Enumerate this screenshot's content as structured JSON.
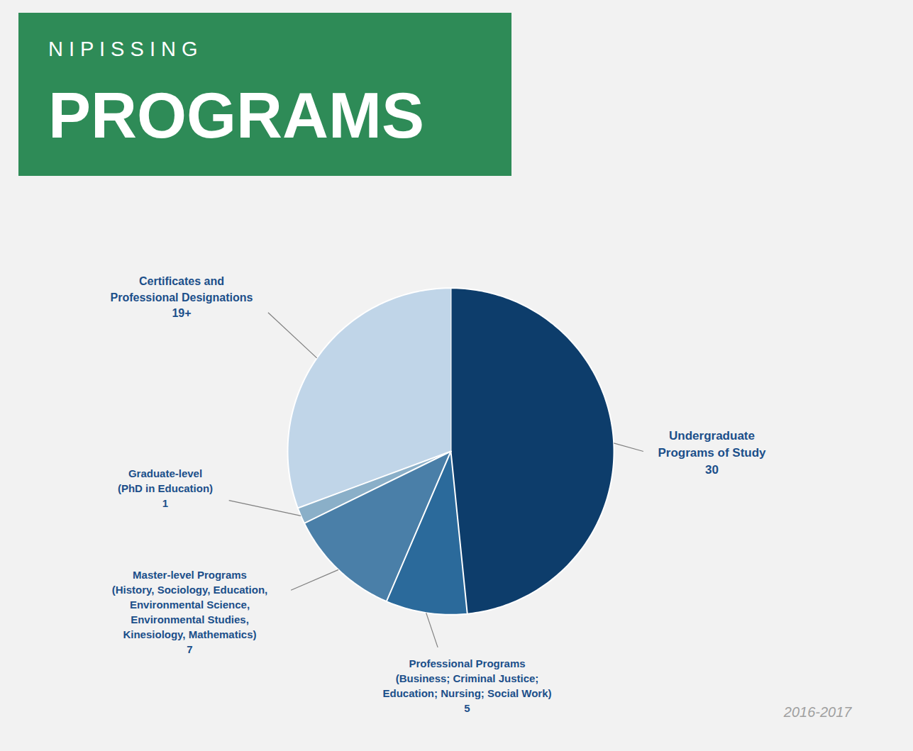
{
  "chart_data": {
    "type": "pie",
    "title": "N I P I S S I N G",
    "subtitle": "PROGRAMS",
    "categories": [
      "Undergraduate\nPrograms of Study",
      "Professional Programs\n(Business; Criminal Justice;\nEducation; Nursing; Social Work)",
      "Master-level Programs\n(History, Sociology, Education,\nEnvironmental Science,\nEnvironmental Studies,\nKinesiology, Mathematics)",
      "Graduate-level\n(PhD in Education)",
      "Certificates and\nProfessional Designations"
    ],
    "values": [
      30,
      5,
      7,
      1,
      19
    ],
    "value_labels": [
      "30",
      "5",
      "7",
      "1",
      "19+"
    ],
    "colors": [
      "#0D3D6B",
      "#2B6A9B",
      "#4A7FA8",
      "#8AAFC8",
      "#C0D5E8"
    ],
    "data_labels": true,
    "annotations": [
      "2016-2017"
    ]
  }
}
